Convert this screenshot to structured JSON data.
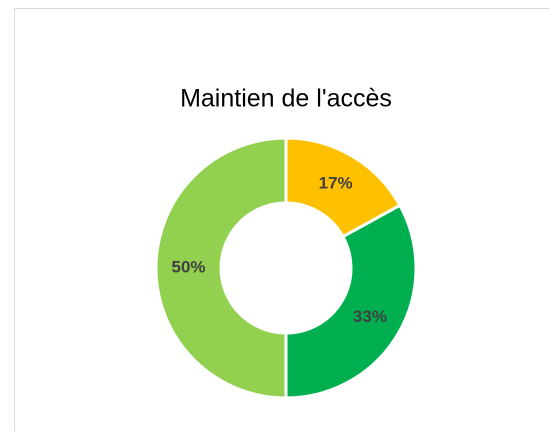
{
  "chart_data": {
    "type": "donut",
    "title": "Maintien de l'accès",
    "values": [
      17,
      33,
      50
    ],
    "value_labels": [
      "17%",
      "33%",
      "50%"
    ],
    "colors": [
      "#FFC000",
      "#00B050",
      "#92D050"
    ]
  }
}
